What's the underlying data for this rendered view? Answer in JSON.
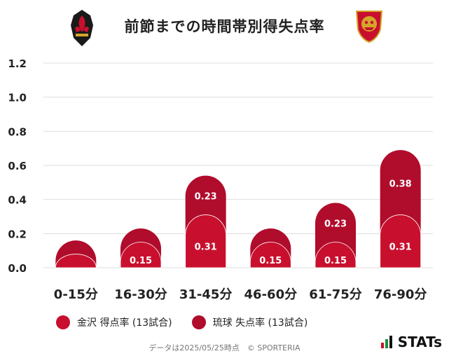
{
  "title": "前節までの時間帯別得失点率",
  "left_logo_icon": "kanazawa-club-crest-icon",
  "right_logo_icon": "ryukyu-club-crest-icon",
  "chart_data": {
    "type": "bar",
    "stacked": true,
    "categories": [
      "0-15分",
      "16-30分",
      "31-45分",
      "46-60分",
      "61-75分",
      "76-90分"
    ],
    "y_ticks": [
      "0.0",
      "0.2",
      "0.4",
      "0.6",
      "0.8",
      "1.0",
      "1.2"
    ],
    "ylim": [
      0,
      1.2
    ],
    "grid": true,
    "legend_placement": "bottom-left",
    "series": [
      {
        "name": "金沢 得点率 (13試合)",
        "values": [
          0.08,
          0.15,
          0.31,
          0.15,
          0.15,
          0.31
        ],
        "labels": [
          "",
          "0.15",
          "0.31",
          "0.15",
          "0.15",
          "0.31"
        ],
        "color": "#c8102e"
      },
      {
        "name": "琉球 失点率 (13試合)",
        "values": [
          0.08,
          0.08,
          0.23,
          0.08,
          0.23,
          0.38
        ],
        "labels": [
          "",
          "",
          "0.23",
          "",
          "0.23",
          "0.38"
        ],
        "color": "#b00c2c"
      }
    ]
  },
  "footer": "データは2025/05/25時点　© SPORTERIA",
  "brand": "STATs",
  "brand_icon": "stats-bars-icon",
  "colors": {
    "series_a": "#c8102e",
    "series_b": "#b00c2c",
    "grid": "#dddddd",
    "text": "#222222"
  }
}
